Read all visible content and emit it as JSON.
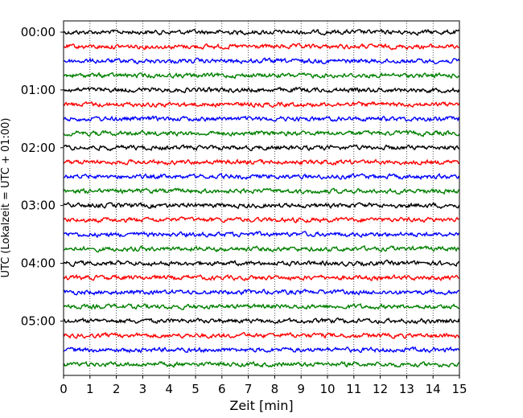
{
  "chart_data": {
    "type": "line",
    "title": "",
    "xlabel": "Zeit  [min]",
    "ylabel": "UTC (Lokalzeit = UTC + 01:00)",
    "xlim": [
      0,
      15
    ],
    "x_ticks": [
      0,
      1,
      2,
      3,
      4,
      5,
      6,
      7,
      8,
      9,
      10,
      11,
      12,
      13,
      14,
      15
    ],
    "y_ticks": [
      "00:00",
      "01:00",
      "02:00",
      "03:00",
      "04:00",
      "05:00"
    ],
    "trace_interval_min": 15,
    "trace_count": 24,
    "trace_colors": [
      "#000000",
      "#ff0000",
      "#0000ff",
      "#008000"
    ],
    "grid": "vertical-dotted",
    "legend": "none"
  }
}
